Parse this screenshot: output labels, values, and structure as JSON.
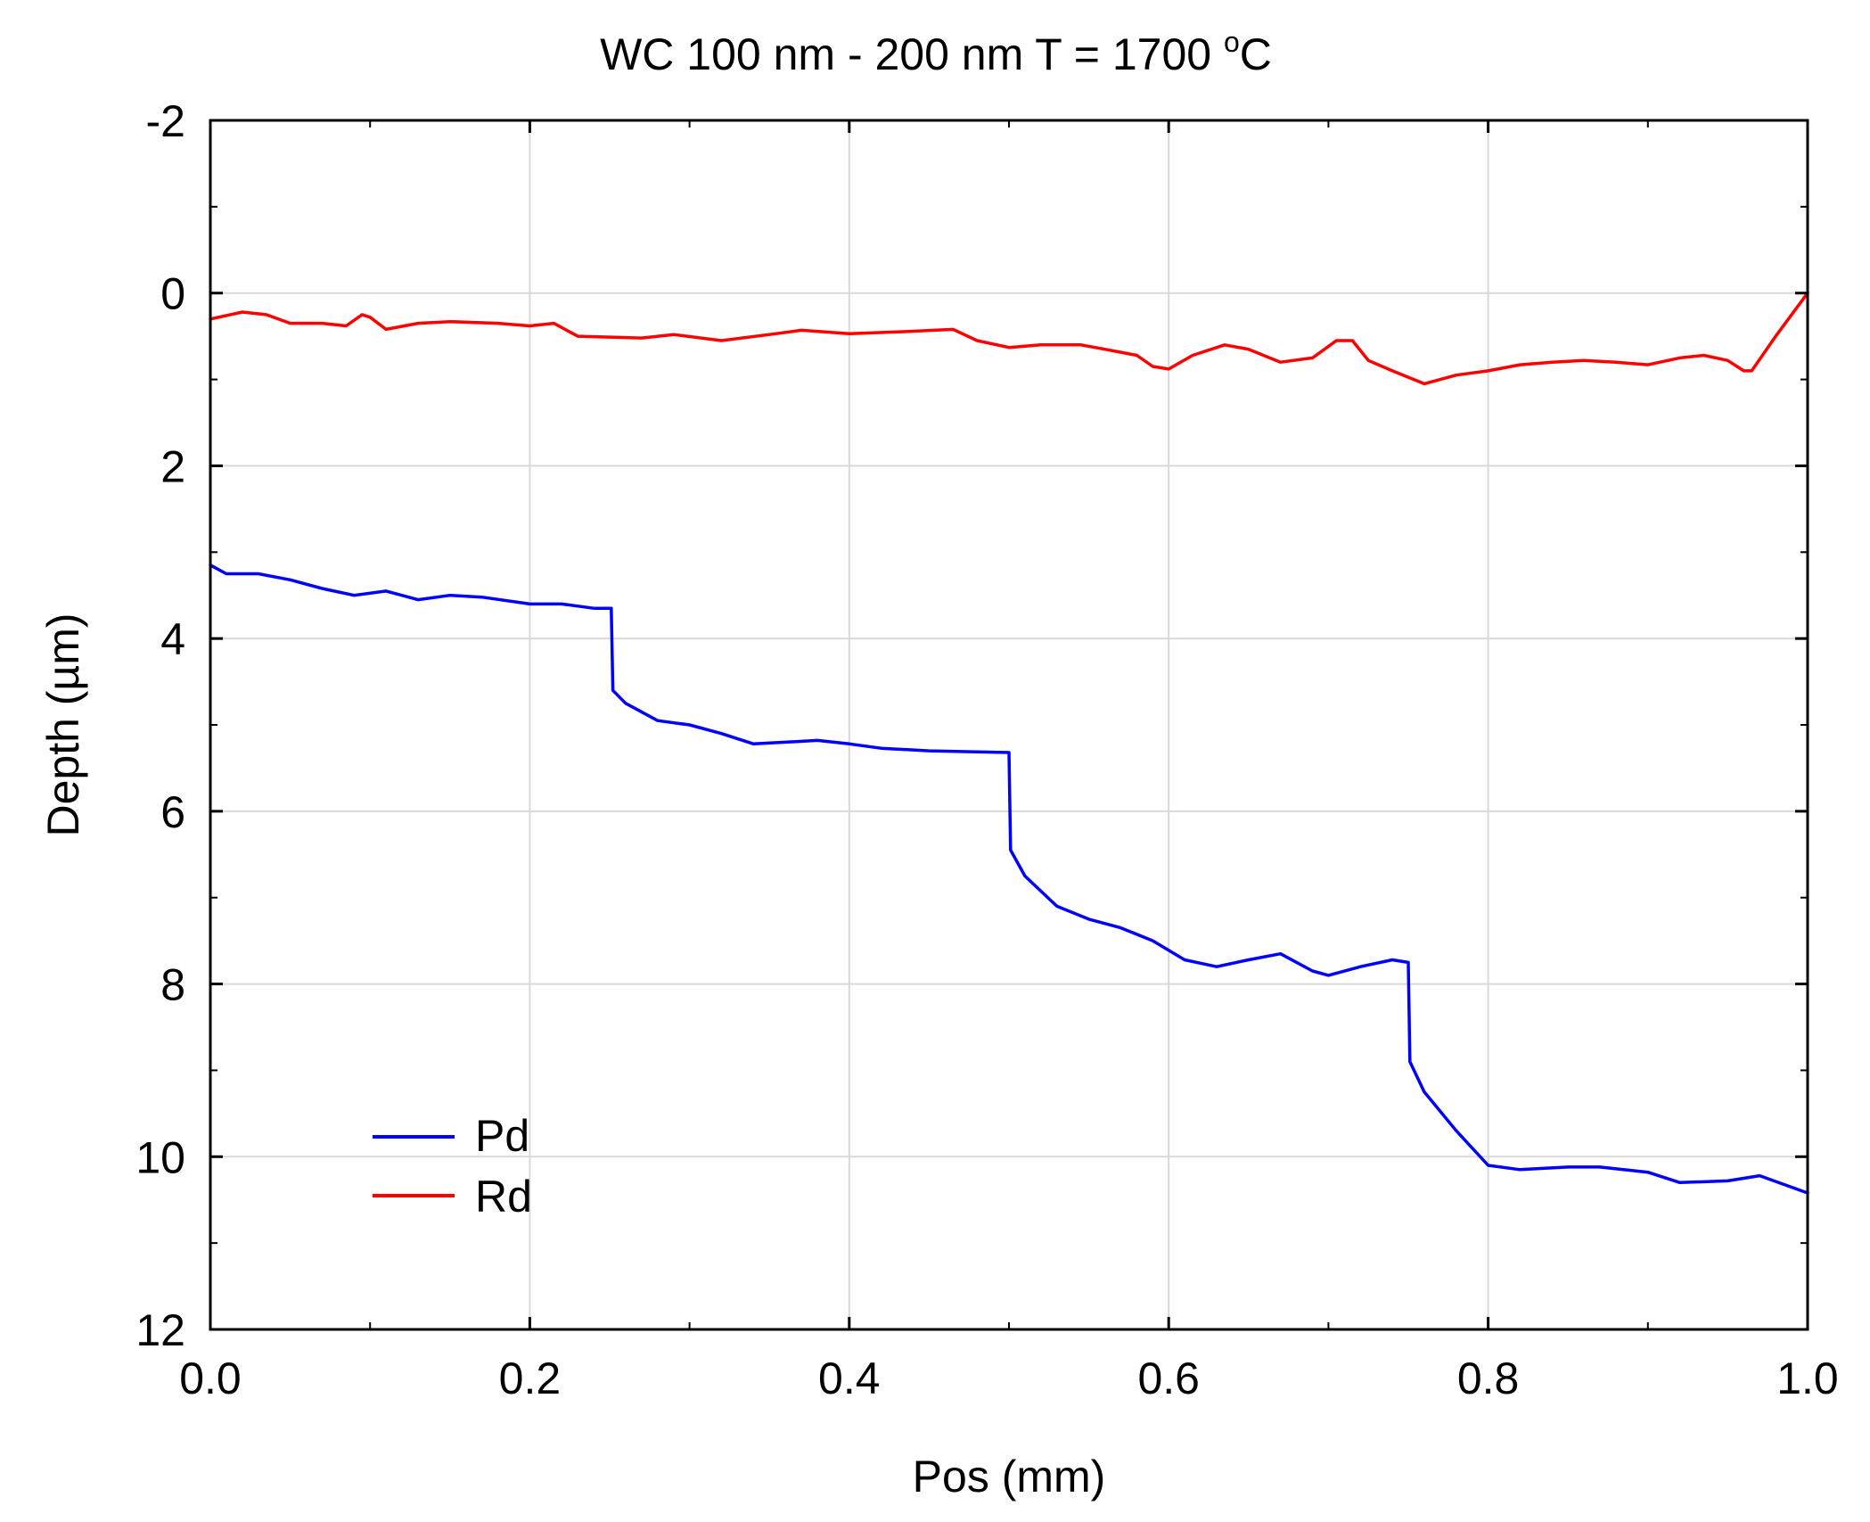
{
  "chart_data": {
    "type": "line",
    "title": "WC 100 nm - 200 nm T = 1700 ",
    "title_sup": "o",
    "title_unit": "C",
    "xlabel": "Pos (mm)",
    "ylabel": "Depth (µm)",
    "xlim": [
      0.0,
      1.0
    ],
    "ylim": [
      -2,
      12
    ],
    "y_inverted": true,
    "xticks": [
      "0.0",
      "0.2",
      "0.4",
      "0.6",
      "0.8",
      "1.0"
    ],
    "yticks": [
      "-2",
      "0",
      "2",
      "4",
      "6",
      "8",
      "10",
      "12"
    ],
    "grid": true,
    "legend_position": "bottom-left",
    "series": [
      {
        "name": "Pd",
        "color": "#0000ff",
        "points": [
          [
            0.0,
            3.15
          ],
          [
            0.01,
            3.25
          ],
          [
            0.03,
            3.25
          ],
          [
            0.05,
            3.32
          ],
          [
            0.07,
            3.42
          ],
          [
            0.09,
            3.5
          ],
          [
            0.11,
            3.45
          ],
          [
            0.13,
            3.55
          ],
          [
            0.15,
            3.5
          ],
          [
            0.17,
            3.52
          ],
          [
            0.2,
            3.6
          ],
          [
            0.22,
            3.6
          ],
          [
            0.24,
            3.65
          ],
          [
            0.251,
            3.65
          ],
          [
            0.252,
            4.6
          ],
          [
            0.26,
            4.75
          ],
          [
            0.28,
            4.95
          ],
          [
            0.3,
            5.0
          ],
          [
            0.32,
            5.1
          ],
          [
            0.34,
            5.22
          ],
          [
            0.36,
            5.2
          ],
          [
            0.38,
            5.18
          ],
          [
            0.4,
            5.22
          ],
          [
            0.42,
            5.27
          ],
          [
            0.45,
            5.3
          ],
          [
            0.5,
            5.32
          ],
          [
            0.501,
            6.45
          ],
          [
            0.51,
            6.75
          ],
          [
            0.53,
            7.1
          ],
          [
            0.55,
            7.25
          ],
          [
            0.57,
            7.35
          ],
          [
            0.59,
            7.5
          ],
          [
            0.61,
            7.72
          ],
          [
            0.63,
            7.8
          ],
          [
            0.65,
            7.72
          ],
          [
            0.67,
            7.65
          ],
          [
            0.69,
            7.85
          ],
          [
            0.7,
            7.9
          ],
          [
            0.72,
            7.8
          ],
          [
            0.74,
            7.72
          ],
          [
            0.75,
            7.75
          ],
          [
            0.751,
            8.9
          ],
          [
            0.76,
            9.25
          ],
          [
            0.78,
            9.7
          ],
          [
            0.8,
            10.1
          ],
          [
            0.82,
            10.15
          ],
          [
            0.85,
            10.12
          ],
          [
            0.87,
            10.12
          ],
          [
            0.9,
            10.18
          ],
          [
            0.92,
            10.3
          ],
          [
            0.95,
            10.28
          ],
          [
            0.97,
            10.22
          ],
          [
            1.0,
            10.42
          ]
        ]
      },
      {
        "name": "Rd",
        "color": "#ff0000",
        "points": [
          [
            0.0,
            0.3
          ],
          [
            0.02,
            0.22
          ],
          [
            0.035,
            0.25
          ],
          [
            0.05,
            0.35
          ],
          [
            0.07,
            0.35
          ],
          [
            0.085,
            0.38
          ],
          [
            0.095,
            0.25
          ],
          [
            0.1,
            0.28
          ],
          [
            0.11,
            0.42
          ],
          [
            0.13,
            0.35
          ],
          [
            0.15,
            0.33
          ],
          [
            0.18,
            0.35
          ],
          [
            0.2,
            0.38
          ],
          [
            0.215,
            0.35
          ],
          [
            0.23,
            0.5
          ],
          [
            0.27,
            0.52
          ],
          [
            0.29,
            0.48
          ],
          [
            0.32,
            0.55
          ],
          [
            0.35,
            0.48
          ],
          [
            0.37,
            0.43
          ],
          [
            0.4,
            0.47
          ],
          [
            0.43,
            0.45
          ],
          [
            0.465,
            0.42
          ],
          [
            0.48,
            0.55
          ],
          [
            0.5,
            0.63
          ],
          [
            0.52,
            0.6
          ],
          [
            0.545,
            0.6
          ],
          [
            0.56,
            0.65
          ],
          [
            0.58,
            0.72
          ],
          [
            0.59,
            0.85
          ],
          [
            0.6,
            0.88
          ],
          [
            0.615,
            0.72
          ],
          [
            0.635,
            0.6
          ],
          [
            0.65,
            0.65
          ],
          [
            0.67,
            0.8
          ],
          [
            0.69,
            0.75
          ],
          [
            0.705,
            0.55
          ],
          [
            0.715,
            0.55
          ],
          [
            0.725,
            0.78
          ],
          [
            0.74,
            0.9
          ],
          [
            0.76,
            1.05
          ],
          [
            0.78,
            0.95
          ],
          [
            0.8,
            0.9
          ],
          [
            0.82,
            0.83
          ],
          [
            0.84,
            0.8
          ],
          [
            0.86,
            0.78
          ],
          [
            0.88,
            0.8
          ],
          [
            0.9,
            0.83
          ],
          [
            0.92,
            0.75
          ],
          [
            0.935,
            0.72
          ],
          [
            0.95,
            0.78
          ],
          [
            0.96,
            0.9
          ],
          [
            0.965,
            0.9
          ],
          [
            0.98,
            0.5
          ],
          [
            1.0,
            0.0
          ]
        ]
      }
    ]
  }
}
